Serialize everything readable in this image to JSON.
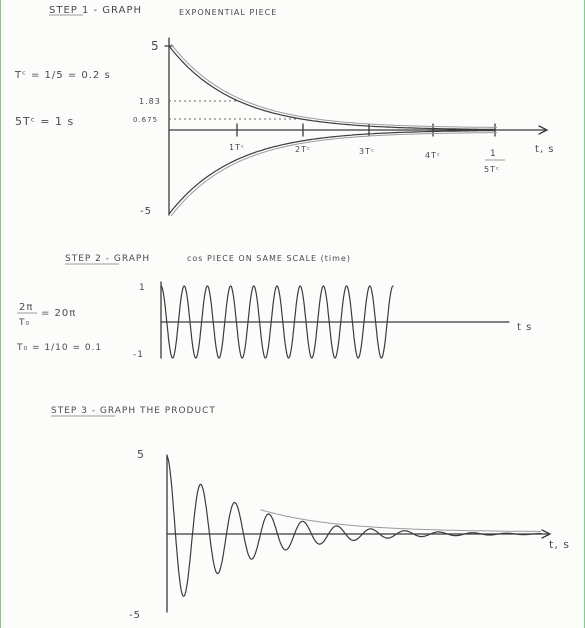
{
  "step1": {
    "title": "STEP 1 - GRAPH",
    "subtitle": "EXPONENTIAL PIECE",
    "tc_eq": "Tᶜ = 1/5 = 0.2 s",
    "five_tc": "5Tᶜ = 1 s",
    "y_top": "5",
    "y_bottom": "-5",
    "y_mark1": "1.83",
    "y_mark2": "0.675",
    "ticks": [
      "1Tᶜ",
      "2Tᶜ",
      "3Tᶜ",
      "4Tᶜ"
    ],
    "end_tick_top": "1",
    "end_tick_bottom": "5Tᶜ",
    "x_label": "t, s"
  },
  "step2": {
    "title": "STEP 2 - GRAPH",
    "subtitle": "cos PIECE ON SAME SCALE (time)",
    "omega_eq_left": "2π",
    "omega_eq_den": "T₀",
    "omega_eq_right": "= 20π",
    "t0_eq": "T₀ = 1/10 = 0.1",
    "y_top": "1",
    "y_bottom": "-1",
    "x_label": "t s"
  },
  "step3": {
    "title": "STEP 3 - GRAPH THE PRODUCT",
    "y_top": "5",
    "y_bottom": "-5",
    "x_label": "t, s"
  },
  "chart_data": [
    {
      "type": "line",
      "title": "STEP 1 - GRAPH EXPONENTIAL PIECE",
      "xlabel": "t, s",
      "ylabel": "",
      "ylim": [
        -5,
        5
      ],
      "x": [
        0,
        0.2,
        0.4,
        0.6,
        0.8,
        1.0
      ],
      "series": [
        {
          "values": [
            5,
            1.83,
            0.675,
            0.25,
            0.09,
            0.03
          ]
        },
        {
          "values": [
            -5,
            -1.83,
            -0.675,
            -0.25,
            -0.09,
            -0.03
          ]
        }
      ]
    },
    {
      "type": "line",
      "title": "STEP 2 - GRAPH cos PIECE ON SAME SCALE (time)",
      "xlabel": "t s",
      "ylim": [
        -1,
        1
      ],
      "xlim": [
        0,
        1
      ],
      "frequency_cycles": 10
    },
    {
      "type": "line",
      "title": "STEP 3 - GRAPH THE PRODUCT",
      "xlabel": "t, s",
      "ylim": [
        -5,
        5
      ],
      "xlim": [
        0,
        1
      ]
    }
  ]
}
